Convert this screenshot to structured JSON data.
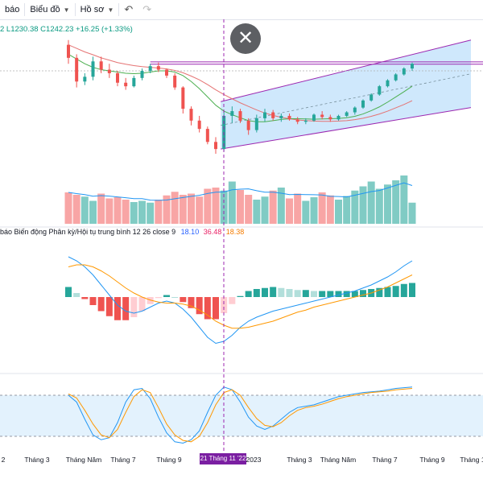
{
  "toolbar": {
    "items": [
      {
        "label": "báo",
        "caret": false
      },
      {
        "label": "Biểu đồ",
        "caret": true
      },
      {
        "label": "Hồ sơ",
        "caret": true
      }
    ],
    "undo_icon": "↶",
    "redo_icon": "↷"
  },
  "legend": {
    "ohlc": "2  L1230.38  C1242.23  +16.25 (+1.33%)",
    "macd_title": "báo Biến động Phân kỳ/Hội tụ trung bình 12 26 close 9",
    "macd_value": "18.10",
    "signal_value": "36.48",
    "hist_value": "18.38"
  },
  "close_icon": "✕",
  "crosshair_date": "21 Tháng 11 '22",
  "colors": {
    "up": "#26a69a",
    "down": "#ef5350",
    "channel": "#9c27b0",
    "channel_fill": "#bbdefb",
    "ma_fast": "#4caf50",
    "ma_slow": "#e57373",
    "macd": "#2196f3",
    "signal": "#ff9800"
  },
  "chart_data": {
    "type": "candlestick",
    "x_ticks": [
      "2",
      "Tháng 3",
      "Tháng Năm",
      "Tháng 7",
      "Tháng 9",
      "2023",
      "Tháng 3",
      "Tháng Năm",
      "Tháng 7",
      "Tháng 9",
      "Tháng 1"
    ],
    "price": {
      "ylim": [
        880,
        1580
      ],
      "candles": [
        [
          1520,
          1540,
          1440,
          1465
        ],
        [
          1465,
          1480,
          1340,
          1365
        ],
        [
          1365,
          1400,
          1350,
          1385
        ],
        [
          1385,
          1470,
          1370,
          1450
        ],
        [
          1450,
          1470,
          1400,
          1415
        ],
        [
          1415,
          1440,
          1380,
          1400
        ],
        [
          1400,
          1410,
          1345,
          1360
        ],
        [
          1360,
          1380,
          1330,
          1345
        ],
        [
          1345,
          1390,
          1340,
          1380
        ],
        [
          1380,
          1420,
          1370,
          1410
        ],
        [
          1410,
          1440,
          1400,
          1430
        ],
        [
          1430,
          1445,
          1405,
          1415
        ],
        [
          1415,
          1420,
          1380,
          1390
        ],
        [
          1390,
          1400,
          1330,
          1340
        ],
        [
          1340,
          1345,
          1230,
          1250
        ],
        [
          1250,
          1260,
          1180,
          1200
        ],
        [
          1200,
          1220,
          1150,
          1165
        ],
        [
          1165,
          1175,
          1100,
          1110
        ],
        [
          1110,
          1130,
          1060,
          1080
        ],
        [
          1080,
          1240,
          1070,
          1220
        ],
        [
          1220,
          1260,
          1190,
          1240
        ],
        [
          1240,
          1250,
          1190,
          1200
        ],
        [
          1200,
          1210,
          1140,
          1160
        ],
        [
          1160,
          1225,
          1150,
          1210
        ],
        [
          1210,
          1250,
          1195,
          1235
        ],
        [
          1235,
          1245,
          1200,
          1210
        ],
        [
          1210,
          1230,
          1195,
          1220
        ],
        [
          1220,
          1230,
          1200,
          1205
        ],
        [
          1205,
          1215,
          1185,
          1195
        ],
        [
          1195,
          1210,
          1185,
          1200
        ],
        [
          1200,
          1230,
          1195,
          1225
        ],
        [
          1225,
          1240,
          1205,
          1215
        ],
        [
          1215,
          1225,
          1195,
          1205
        ],
        [
          1205,
          1225,
          1200,
          1220
        ],
        [
          1220,
          1240,
          1215,
          1235
        ],
        [
          1235,
          1260,
          1225,
          1255
        ],
        [
          1255,
          1290,
          1250,
          1285
        ],
        [
          1285,
          1315,
          1280,
          1310
        ],
        [
          1310,
          1350,
          1305,
          1345
        ],
        [
          1345,
          1375,
          1340,
          1370
        ],
        [
          1370,
          1400,
          1365,
          1395
        ],
        [
          1395,
          1425,
          1390,
          1420
        ],
        [
          1420,
          1445,
          1410,
          1440
        ]
      ],
      "ma_fast": [
        1480,
        1460,
        1440,
        1425,
        1415,
        1410,
        1405,
        1400,
        1398,
        1400,
        1405,
        1410,
        1410,
        1405,
        1390,
        1365,
        1335,
        1300,
        1265,
        1240,
        1225,
        1212,
        1200,
        1195,
        1195,
        1200,
        1205,
        1208,
        1208,
        1207,
        1206,
        1207,
        1208,
        1209,
        1212,
        1218,
        1228,
        1242,
        1258,
        1278,
        1300,
        1322,
        1345
      ],
      "ma_slow": [
        1520,
        1505,
        1490,
        1478,
        1465,
        1455,
        1445,
        1438,
        1432,
        1428,
        1425,
        1422,
        1418,
        1412,
        1402,
        1388,
        1372,
        1352,
        1330,
        1310,
        1292,
        1275,
        1260,
        1245,
        1232,
        1222,
        1214,
        1208,
        1203,
        1200,
        1198,
        1197,
        1197,
        1198,
        1200,
        1204,
        1210,
        1218,
        1228,
        1240,
        1254,
        1268,
        1284
      ],
      "volumes": [
        52,
        48,
        45,
        38,
        50,
        42,
        44,
        40,
        36,
        38,
        35,
        40,
        47,
        53,
        48,
        50,
        45,
        58,
        60,
        55,
        70,
        56,
        48,
        40,
        45,
        55,
        60,
        42,
        50,
        38,
        44,
        52,
        47,
        40,
        46,
        55,
        62,
        70,
        58,
        65,
        72,
        80,
        35
      ]
    },
    "macd": {
      "ylim": [
        -60,
        60
      ],
      "macd": [
        40,
        36,
        30,
        22,
        12,
        2,
        -8,
        -14,
        -16,
        -14,
        -10,
        -6,
        -4,
        -6,
        -12,
        -20,
        -30,
        -40,
        -46,
        -44,
        -38,
        -30,
        -24,
        -20,
        -17,
        -14,
        -12,
        -10,
        -8,
        -6,
        -4,
        -2,
        0,
        2,
        4,
        6,
        9,
        12,
        16,
        20,
        25,
        31,
        36
      ],
      "signal": [
        30,
        32,
        32,
        30,
        26,
        21,
        15,
        9,
        4,
        0,
        -3,
        -5,
        -6,
        -6,
        -7,
        -9,
        -13,
        -18,
        -24,
        -28,
        -31,
        -31,
        -30,
        -28,
        -26,
        -24,
        -21,
        -18,
        -15,
        -13,
        -10,
        -8,
        -6,
        -4,
        -2,
        0,
        2,
        4,
        7,
        10,
        14,
        18,
        22
      ],
      "histogram": [
        10,
        4,
        -2,
        -8,
        -14,
        -19,
        -23,
        -23,
        -20,
        -14,
        -7,
        -1,
        2,
        0,
        -5,
        -11,
        -17,
        -22,
        -22,
        -16,
        -7,
        1,
        6,
        8,
        9,
        10,
        9,
        8,
        7,
        7,
        6,
        6,
        6,
        6,
        6,
        6,
        7,
        8,
        9,
        10,
        11,
        13,
        14
      ]
    },
    "stoch": {
      "ylim": [
        0,
        100
      ],
      "bands": [
        20,
        80
      ],
      "k": [
        80,
        70,
        45,
        22,
        15,
        18,
        40,
        70,
        88,
        90,
        75,
        48,
        25,
        12,
        10,
        15,
        28,
        55,
        80,
        92,
        88,
        70,
        48,
        35,
        30,
        35,
        45,
        55,
        62,
        64,
        66,
        70,
        74,
        78,
        80,
        82,
        84,
        85,
        86,
        88,
        90,
        91,
        92
      ],
      "d": [
        82,
        76,
        58,
        38,
        22,
        18,
        30,
        55,
        78,
        88,
        84,
        62,
        38,
        22,
        14,
        12,
        20,
        40,
        66,
        84,
        88,
        80,
        62,
        46,
        36,
        34,
        40,
        50,
        58,
        62,
        64,
        67,
        71,
        75,
        78,
        80,
        82,
        84,
        85,
        86,
        88,
        89,
        90
      ]
    }
  }
}
